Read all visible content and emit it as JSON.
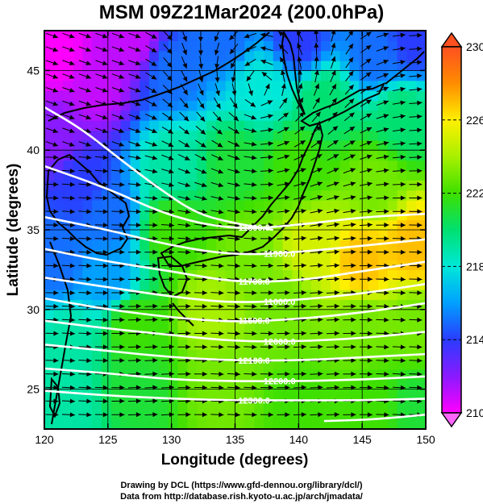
{
  "chart_data": {
    "type": "heatmap",
    "title": "MSM 09Z21Mar2024 (200.0hPa)",
    "xlabel": "Longitude (degrees)",
    "ylabel": "Latitude  (degrees)",
    "xlim": [
      120,
      150
    ],
    "ylim": [
      22.5,
      47.5
    ],
    "x_ticks": [
      120,
      125,
      130,
      135,
      140,
      145,
      150
    ],
    "y_ticks": [
      25,
      30,
      35,
      40,
      45
    ],
    "colorbar": {
      "min": 210,
      "max": 230,
      "ticks": [
        210,
        214,
        218,
        222,
        226,
        230
      ]
    },
    "colormap": [
      "#ff00ff",
      "#8a1aff",
      "#2a3cff",
      "#00a0ff",
      "#00e8d8",
      "#00e070",
      "#3ee000",
      "#a8f000",
      "#fff000",
      "#ff8c00",
      "#ff5020"
    ],
    "temperature_field": [
      {
        "lon": 121,
        "lat": 46,
        "value": 210
      },
      {
        "lon": 124,
        "lat": 44,
        "value": 211
      },
      {
        "lon": 127,
        "lat": 47,
        "value": 211
      },
      {
        "lon": 121,
        "lat": 41,
        "value": 212
      },
      {
        "lon": 130,
        "lat": 45,
        "value": 215
      },
      {
        "lon": 134,
        "lat": 47,
        "value": 215
      },
      {
        "lon": 140,
        "lat": 47,
        "value": 214
      },
      {
        "lon": 146,
        "lat": 46,
        "value": 215
      },
      {
        "lon": 149,
        "lat": 47,
        "value": 214
      },
      {
        "lon": 123,
        "lat": 38,
        "value": 214
      },
      {
        "lon": 125,
        "lat": 36,
        "value": 215
      },
      {
        "lon": 121,
        "lat": 33,
        "value": 215
      },
      {
        "lon": 125,
        "lat": 32,
        "value": 216
      },
      {
        "lon": 137,
        "lat": 44,
        "value": 218
      },
      {
        "lon": 142,
        "lat": 43,
        "value": 220
      },
      {
        "lon": 148,
        "lat": 42,
        "value": 220
      },
      {
        "lon": 130,
        "lat": 39,
        "value": 219
      },
      {
        "lon": 135,
        "lat": 39,
        "value": 221
      },
      {
        "lon": 140,
        "lat": 39,
        "value": 222
      },
      {
        "lon": 146,
        "lat": 38,
        "value": 223
      },
      {
        "lon": 130,
        "lat": 35,
        "value": 222
      },
      {
        "lon": 136,
        "lat": 34,
        "value": 223
      },
      {
        "lon": 141,
        "lat": 34,
        "value": 225
      },
      {
        "lon": 145,
        "lat": 33,
        "value": 227
      },
      {
        "lon": 149,
        "lat": 34,
        "value": 227
      },
      {
        "lon": 122,
        "lat": 28,
        "value": 219
      },
      {
        "lon": 127,
        "lat": 29,
        "value": 222
      },
      {
        "lon": 133,
        "lat": 30,
        "value": 224
      },
      {
        "lon": 139,
        "lat": 30,
        "value": 223
      },
      {
        "lon": 145,
        "lat": 29,
        "value": 223
      },
      {
        "lon": 149,
        "lat": 29,
        "value": 223
      },
      {
        "lon": 122,
        "lat": 24,
        "value": 219
      },
      {
        "lon": 127,
        "lat": 25,
        "value": 221
      },
      {
        "lon": 134,
        "lat": 25,
        "value": 223
      },
      {
        "lon": 140,
        "lat": 24,
        "value": 222
      },
      {
        "lon": 146,
        "lat": 24,
        "value": 222
      },
      {
        "lon": 149,
        "lat": 24,
        "value": 221
      }
    ],
    "height_contours": [
      {
        "label": "11800.0",
        "points": [
          [
            120,
            39
          ],
          [
            125,
            37.6
          ],
          [
            130,
            35.8
          ],
          [
            135,
            35
          ],
          [
            140,
            35.3
          ],
          [
            145,
            35.8
          ],
          [
            150,
            36
          ]
        ]
      },
      {
        "label": "11900.0",
        "points": [
          [
            120,
            35.8
          ],
          [
            125,
            35
          ],
          [
            130,
            34
          ],
          [
            135,
            33.4
          ],
          [
            140,
            33.6
          ],
          [
            145,
            34
          ],
          [
            150,
            34.4
          ]
        ]
      },
      {
        "label": "11700.0",
        "points": [
          [
            120,
            33.8
          ],
          [
            125,
            33
          ],
          [
            130,
            32.4
          ],
          [
            135,
            31.7
          ],
          [
            140,
            31.8
          ],
          [
            145,
            32.4
          ],
          [
            150,
            33
          ]
        ]
      },
      {
        "label": "11600.0",
        "points": [
          [
            120,
            32
          ],
          [
            125,
            31.4
          ],
          [
            130,
            30.8
          ],
          [
            135,
            30.4
          ],
          [
            140,
            30.6
          ],
          [
            145,
            31
          ],
          [
            150,
            31.6
          ]
        ]
      },
      {
        "label": "11500.0",
        "points": [
          [
            120,
            30.7
          ],
          [
            125,
            30
          ],
          [
            130,
            29.5
          ],
          [
            135,
            29.2
          ],
          [
            140,
            29.4
          ],
          [
            145,
            29.8
          ],
          [
            150,
            30.4
          ]
        ]
      },
      {
        "label": "12000.0",
        "points": [
          [
            120,
            29.3
          ],
          [
            125,
            28.8
          ],
          [
            130,
            28.4
          ],
          [
            135,
            28
          ],
          [
            140,
            28
          ],
          [
            145,
            28.2
          ],
          [
            150,
            28.6
          ]
        ]
      },
      {
        "label": "12100.0",
        "points": [
          [
            120,
            27.8
          ],
          [
            125,
            27.4
          ],
          [
            130,
            27
          ],
          [
            135,
            26.8
          ],
          [
            140,
            26.8
          ],
          [
            145,
            27
          ],
          [
            150,
            27.2
          ]
        ]
      },
      {
        "label": "12200.0",
        "points": [
          [
            120,
            26.3
          ],
          [
            125,
            26
          ],
          [
            130,
            25.6
          ],
          [
            135,
            25.5
          ],
          [
            140,
            25.5
          ],
          [
            145,
            25.6
          ],
          [
            150,
            25.8
          ]
        ]
      },
      {
        "label": "12300.0",
        "points": [
          [
            120,
            24.9
          ],
          [
            125,
            24.6
          ],
          [
            130,
            24.4
          ],
          [
            135,
            24.3
          ],
          [
            140,
            24.3
          ],
          [
            145,
            24.3
          ],
          [
            150,
            24.4
          ]
        ]
      },
      {
        "label": "",
        "points": [
          [
            120,
            42.7
          ],
          [
            123,
            41.3
          ],
          [
            126,
            39.4
          ],
          [
            129,
            37.6
          ],
          [
            132,
            36
          ],
          [
            135,
            35.4
          ],
          [
            138,
            35
          ]
        ]
      },
      {
        "label": "",
        "points": [
          [
            142,
            23
          ],
          [
            146,
            23.1
          ],
          [
            150,
            23.4
          ]
        ]
      }
    ]
  },
  "credits": {
    "line1": "Drawing by DCL (https://www.gfd-dennou.org/library/dcl/)",
    "line2": "Data from http://database.rish.kyoto-u.ac.jp/arch/jmadata/"
  }
}
